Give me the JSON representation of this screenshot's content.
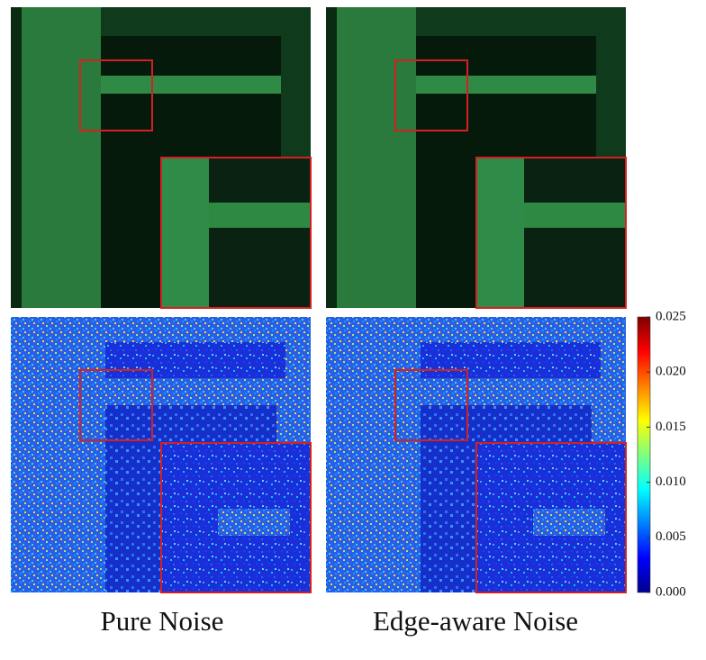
{
  "columns": [
    {
      "label": "Pure Noise"
    },
    {
      "label": "Edge-aware Noise"
    }
  ],
  "colorbar": {
    "range": [
      0,
      0.025
    ],
    "ticks": [
      {
        "value": 0,
        "label": "0.000"
      },
      0.005,
      {
        "value": 0.01,
        "label": "0.010"
      },
      0.015,
      {
        "value": 0.02,
        "label": "0.020"
      },
      0.025
    ]
  }
}
